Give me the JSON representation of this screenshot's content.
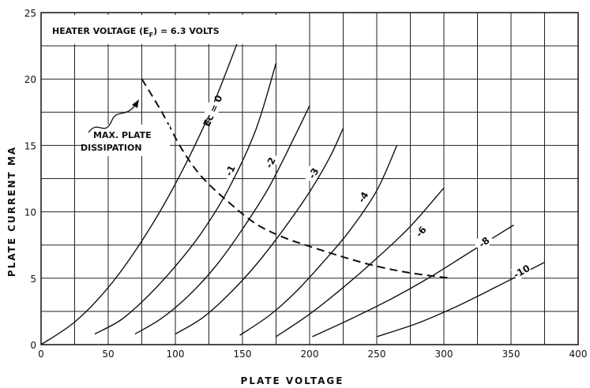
{
  "chart_data": {
    "type": "line",
    "title": "",
    "xlabel": "PLATE VOLTAGE",
    "ylabel": "PLATE CURRENT MA",
    "xlim": [
      0,
      400
    ],
    "ylim": [
      0,
      25
    ],
    "x_ticks": [
      "0",
      "50",
      "100",
      "150",
      "200",
      "250",
      "300",
      "350",
      "400"
    ],
    "y_ticks": [
      "0",
      "5",
      "10",
      "15",
      "20",
      "25"
    ],
    "x_tick_values": [
      0,
      50,
      100,
      150,
      200,
      250,
      300,
      350,
      400
    ],
    "y_tick_values": [
      0,
      5,
      10,
      15,
      20,
      25
    ],
    "grid": true,
    "series": [
      {
        "name": "Ec = 0",
        "x": [
          0,
          25,
          50,
          75,
          100,
          125,
          148
        ],
        "y": [
          0,
          1.7,
          4.3,
          7.8,
          12.1,
          17.3,
          23.2
        ]
      },
      {
        "name": "-1",
        "x": [
          40,
          60,
          80,
          100,
          120,
          140,
          160,
          175
        ],
        "y": [
          0.8,
          1.9,
          3.7,
          5.9,
          8.5,
          11.8,
          16.2,
          21.2
        ]
      },
      {
        "name": "-2",
        "x": [
          70,
          90,
          110,
          130,
          150,
          170,
          190,
          200
        ],
        "y": [
          0.8,
          2,
          3.7,
          5.9,
          8.7,
          11.9,
          15.9,
          18
        ]
      },
      {
        "name": "-3",
        "x": [
          100,
          120,
          140,
          160,
          180,
          200,
          215,
          225
        ],
        "y": [
          0.8,
          2,
          3.8,
          6,
          8.6,
          11.5,
          14.1,
          16.3
        ]
      },
      {
        "name": "-4",
        "x": [
          148,
          170,
          190,
          210,
          230,
          250,
          265
        ],
        "y": [
          0.7,
          2.2,
          4,
          6.2,
          8.6,
          11.6,
          15
        ]
      },
      {
        "name": "-6",
        "x": [
          175,
          200,
          225,
          250,
          275,
          300
        ],
        "y": [
          0.6,
          2.3,
          4.3,
          6.5,
          8.9,
          11.8
        ]
      },
      {
        "name": "-8",
        "x": [
          202,
          230,
          260,
          290,
          320,
          352
        ],
        "y": [
          0.6,
          1.9,
          3.4,
          5.1,
          7,
          9
        ]
      },
      {
        "name": "-10",
        "x": [
          250,
          280,
          310,
          340,
          375
        ],
        "y": [
          0.6,
          1.6,
          2.9,
          4.4,
          6.2
        ]
      }
    ],
    "max_dissipation_curve": {
      "x": [
        75,
        90,
        105,
        120,
        140,
        160,
        180,
        200,
        225,
        250,
        275,
        305
      ],
      "y": [
        20,
        17.5,
        14.7,
        12.6,
        10.7,
        9.1,
        8.1,
        7.4,
        6.6,
        5.9,
        5.4,
        5
      ]
    },
    "annotations": {
      "heater": "HEATER VOLTAGE (E",
      "heater_sub": "F",
      "heater_end": ") = 6.3 VOLTS",
      "max_line1": "MAX. PLATE",
      "max_line2": "DISSIPATION"
    }
  }
}
